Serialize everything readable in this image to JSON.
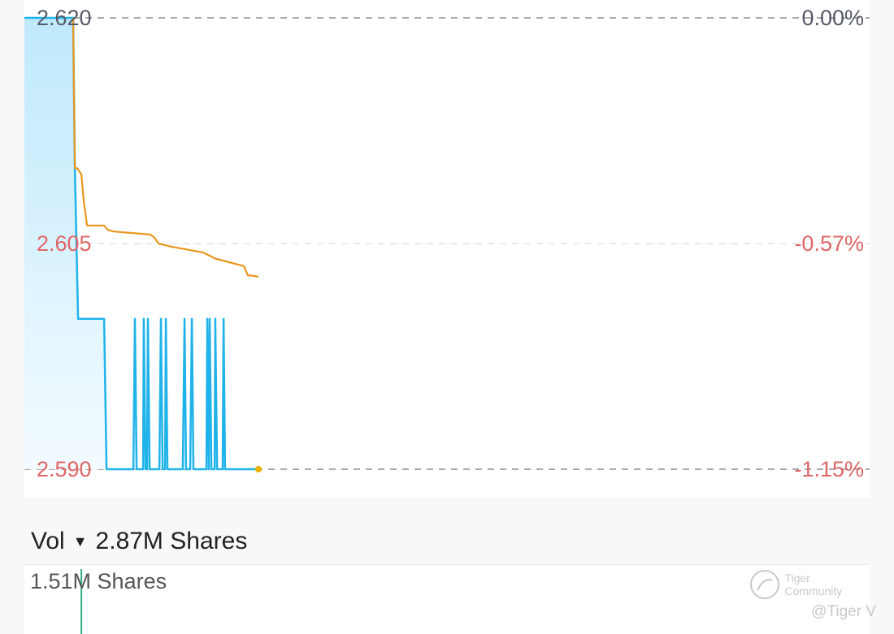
{
  "chart_data": {
    "type": "line",
    "xlim": [
      0,
      390
    ],
    "ylim": [
      2.59,
      2.62
    ],
    "grid": true,
    "left_ticks": [
      {
        "value": 2.62,
        "label": "2.620",
        "color": "#555b66"
      },
      {
        "value": 2.605,
        "label": "2.605",
        "color": "#e06666"
      },
      {
        "value": 2.59,
        "label": "2.590",
        "color": "#e06666"
      }
    ],
    "right_ticks": [
      {
        "value": 2.62,
        "label": "0.00%",
        "color": "#555b66"
      },
      {
        "value": 2.605,
        "label": "-0.57%",
        "color": "#e06666"
      },
      {
        "value": 2.59,
        "label": "-1.15%",
        "color": "#e06666"
      }
    ],
    "series": [
      {
        "color": "#1fb3ea",
        "fill": true,
        "points": [
          [
            0,
            2.62
          ],
          [
            22.5,
            2.62
          ],
          [
            23.3,
            2.61
          ],
          [
            24.8,
            2.6
          ],
          [
            36.8,
            2.6
          ],
          [
            37.9,
            2.59
          ],
          [
            50.3,
            2.59
          ],
          [
            51,
            2.6
          ],
          [
            51.8,
            2.59
          ],
          [
            54.8,
            2.59
          ],
          [
            55.1,
            2.6
          ],
          [
            55.9,
            2.59
          ],
          [
            56.6,
            2.59
          ],
          [
            57,
            2.6
          ],
          [
            57.8,
            2.59
          ],
          [
            62.3,
            2.59
          ],
          [
            63,
            2.6
          ],
          [
            63.8,
            2.59
          ],
          [
            64.9,
            2.59
          ],
          [
            65.3,
            2.6
          ],
          [
            66,
            2.59
          ],
          [
            73.1,
            2.59
          ],
          [
            73.9,
            2.6
          ],
          [
            74.6,
            2.59
          ],
          [
            76.5,
            2.59
          ],
          [
            77.3,
            2.6
          ],
          [
            78,
            2.59
          ],
          [
            84,
            2.59
          ],
          [
            84.4,
            2.6
          ],
          [
            85.1,
            2.59
          ],
          [
            85.5,
            2.6
          ],
          [
            86.3,
            2.59
          ],
          [
            87.8,
            2.59
          ],
          [
            88.1,
            2.6
          ],
          [
            88.9,
            2.59
          ],
          [
            91.5,
            2.59
          ],
          [
            91.9,
            2.6
          ],
          [
            92.6,
            2.59
          ],
          [
            108,
            2.59
          ]
        ]
      },
      {
        "color": "#e8961e",
        "fill": false,
        "points": [
          [
            22.5,
            2.62
          ],
          [
            23.3,
            2.61
          ],
          [
            24.4,
            2.61
          ],
          [
            26.3,
            2.6096
          ],
          [
            27.4,
            2.6078
          ],
          [
            28.9,
            2.6062
          ],
          [
            36.8,
            2.6062
          ],
          [
            38.6,
            2.6059
          ],
          [
            41.3,
            2.6058
          ],
          [
            58.1,
            2.6056
          ],
          [
            60,
            2.6054
          ],
          [
            61.9,
            2.605
          ],
          [
            67.5,
            2.6048
          ],
          [
            82.5,
            2.6044
          ],
          [
            88.1,
            2.604
          ],
          [
            101.3,
            2.6035
          ],
          [
            103.1,
            2.6029
          ],
          [
            108,
            2.6028
          ]
        ]
      }
    ],
    "last_point_color": "#f0b000",
    "volume": {
      "label": "Vol",
      "total": "2.87M Shares",
      "max_label": "1.51M Shares",
      "bar_color": "#2bb07a",
      "bars": [
        [
          26.3,
          1.51
        ]
      ]
    }
  },
  "watermark": {
    "brand": "Tiger Community",
    "user": "@Tiger V"
  }
}
